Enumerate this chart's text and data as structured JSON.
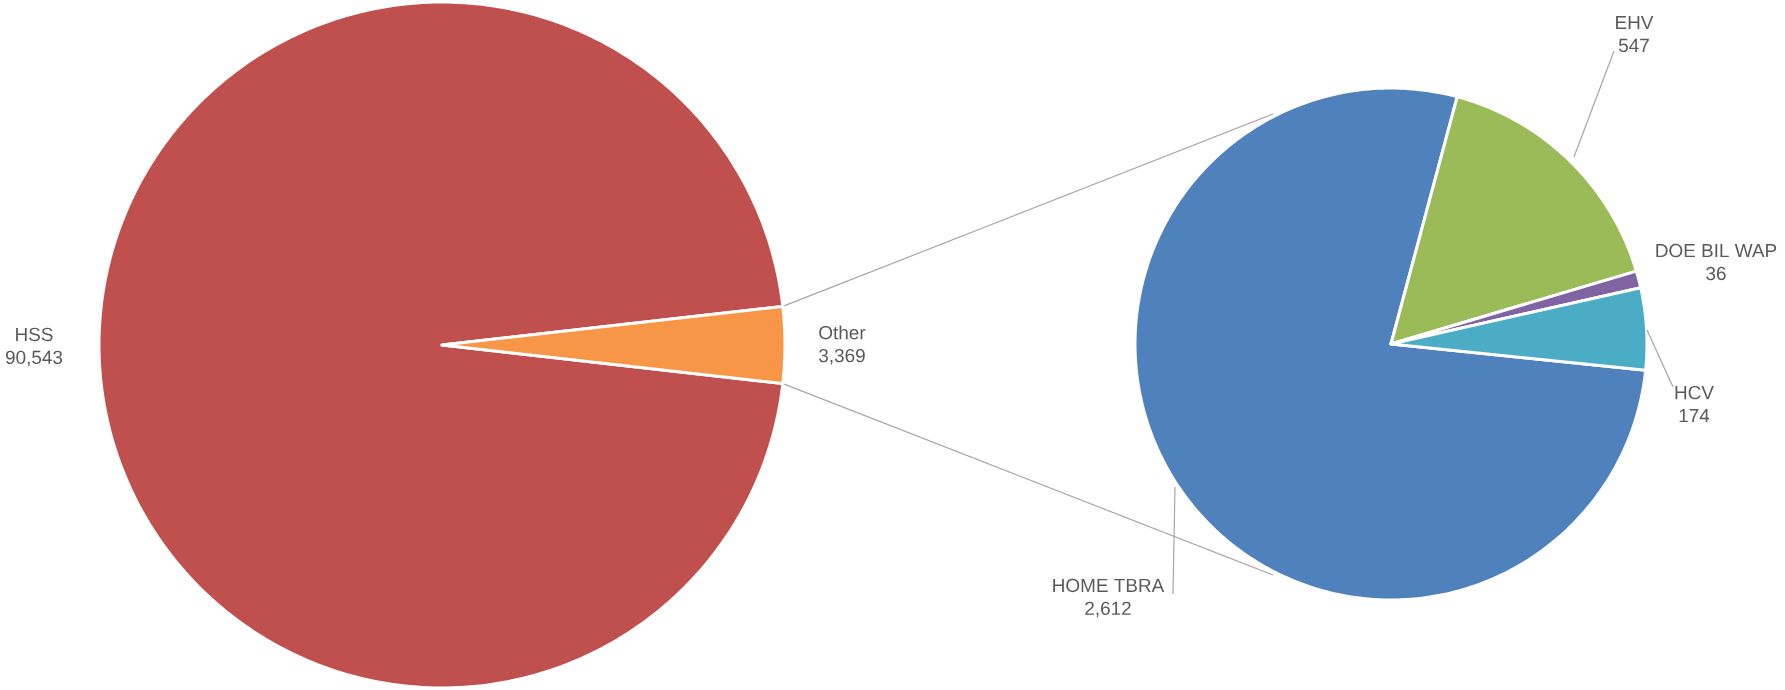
{
  "chart_data": [
    {
      "type": "pie",
      "categories": [
        "HSS",
        "Other"
      ],
      "values": [
        90543,
        3369
      ],
      "value_labels": [
        "90,543",
        "3,369"
      ],
      "colors": [
        "#c0504d",
        "#f79646"
      ]
    },
    {
      "type": "pie",
      "categories": [
        "HOME TBRA",
        "EHV",
        "DOE BIL WAP",
        "HCV"
      ],
      "values": [
        2612,
        547,
        36,
        174
      ],
      "value_labels": [
        "2,612",
        "547",
        "36",
        "174"
      ],
      "colors": [
        "#4f81bd",
        "#9bbb59",
        "#8064a2",
        "#4bacc6"
      ]
    }
  ]
}
